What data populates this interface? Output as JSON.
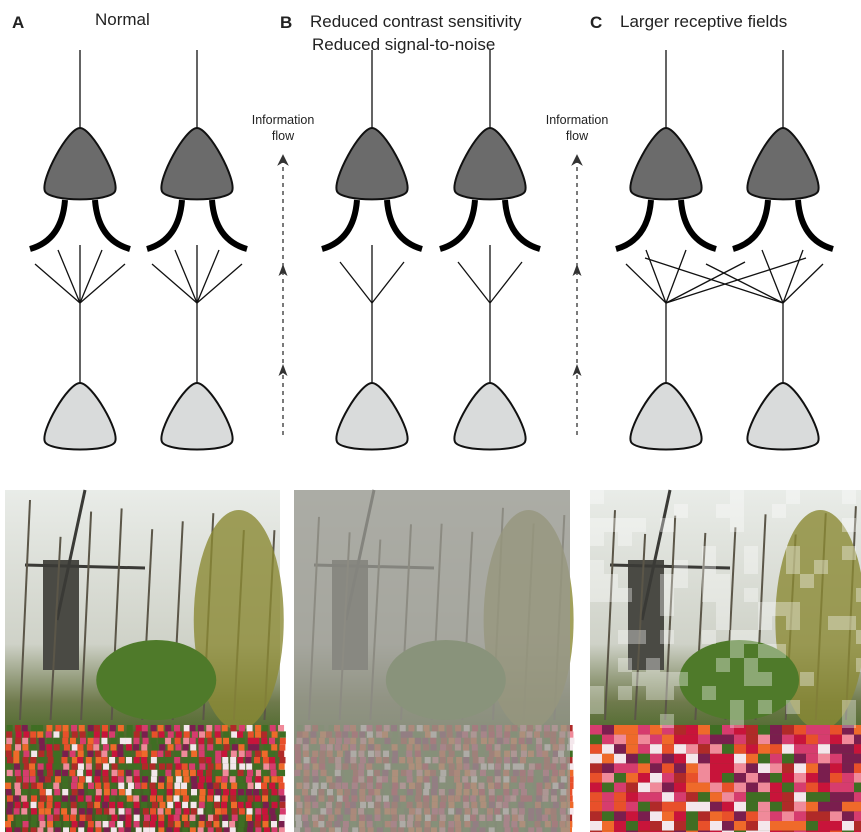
{
  "panels": [
    {
      "label": "A",
      "title": [
        "Normal"
      ]
    },
    {
      "label": "B",
      "title": [
        "Reduced contrast sensitivity",
        "Reduced signal-to-noise"
      ]
    },
    {
      "label": "C",
      "title": [
        "Larger receptive fields"
      ]
    }
  ],
  "flow_labels": [
    [
      "Information",
      "flow"
    ],
    [
      "Information",
      "flow"
    ]
  ]
}
